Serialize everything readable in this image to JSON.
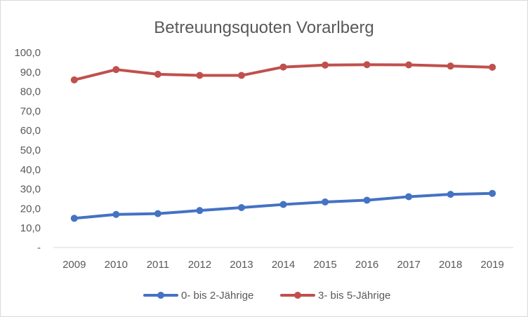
{
  "chart_data": {
    "type": "line",
    "title": "Betreuungsquoten Vorarlberg",
    "xlabel": "",
    "ylabel": "",
    "categories": [
      "2009",
      "2010",
      "2011",
      "2012",
      "2013",
      "2014",
      "2015",
      "2016",
      "2017",
      "2018",
      "2019"
    ],
    "ylim": [
      0,
      100
    ],
    "y_ticks": [
      {
        "value": 0,
        "label": "-"
      },
      {
        "value": 10,
        "label": "10,0"
      },
      {
        "value": 20,
        "label": "20,0"
      },
      {
        "value": 30,
        "label": "30,0"
      },
      {
        "value": 40,
        "label": "40,0"
      },
      {
        "value": 50,
        "label": "50,0"
      },
      {
        "value": 60,
        "label": "60,0"
      },
      {
        "value": 70,
        "label": "70,0"
      },
      {
        "value": 80,
        "label": "80,0"
      },
      {
        "value": 90,
        "label": "90,0"
      },
      {
        "value": 100,
        "label": "100,0"
      }
    ],
    "grid": false,
    "legend_position": "bottom",
    "series": [
      {
        "name": "0- bis 2-Jährige",
        "color": "#4472c4",
        "values": [
          15.0,
          17.0,
          17.4,
          19.0,
          20.5,
          22.1,
          23.4,
          24.3,
          26.1,
          27.3,
          27.8
        ]
      },
      {
        "name": "3- bis 5-Jährige",
        "color": "#c0504d",
        "values": [
          86.0,
          91.3,
          88.9,
          88.3,
          88.3,
          92.6,
          93.6,
          93.8,
          93.7,
          93.1,
          92.5
        ]
      }
    ]
  }
}
